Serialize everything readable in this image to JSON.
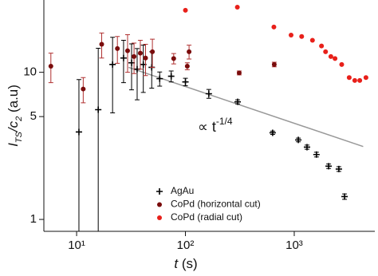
{
  "chart_data": {
    "type": "scatter",
    "y_label_parts": [
      "I",
      "TS",
      "/c",
      "2",
      " (a.u)"
    ],
    "x_label_parts": [
      "t",
      " (s)"
    ],
    "annotation_parts": [
      "∝ t",
      "-1/4"
    ],
    "log_x": true,
    "log_y": true,
    "legend": "lower center",
    "xlim": [
      5,
      5500
    ],
    "ylim": [
      0.83,
      31
    ],
    "xticks": [
      {
        "value": 10,
        "label": "10¹"
      },
      {
        "value": 100,
        "label": "10²"
      },
      {
        "value": 1000,
        "label": "10³"
      }
    ],
    "yticks": [
      1,
      5,
      10
    ],
    "fit_line": {
      "color": "#999999",
      "x": [
        30,
        4300
      ],
      "values": [
        10.8,
        3.13
      ]
    },
    "series": [
      {
        "name": "AgAu",
        "color": "#000000",
        "marker": "plus",
        "x": [
          10.5,
          15.8,
          21.4,
          27,
          32,
          36,
          41,
          49,
          58,
          74,
          100,
          164,
          302,
          633,
          1090,
          1310,
          1600,
          2070,
          2570,
          2900
        ],
        "values": [
          3.93,
          5.57,
          11.3,
          12.5,
          11.6,
          10.5,
          11.3,
          10.8,
          9.05,
          9.4,
          8.6,
          7.15,
          6.3,
          3.88,
          3.47,
          3.1,
          2.76,
          2.3,
          2.2,
          1.43
        ],
        "errors": [
          5,
          9,
          6,
          4,
          4,
          4,
          4,
          3,
          1,
          0.8,
          0.5,
          0.5,
          0.2,
          0.1,
          0.1,
          0.1,
          0.1,
          0.08,
          0.08,
          0.06
        ]
      },
      {
        "name": "CoPd (horizontal cut)",
        "color": "#7a0c0c",
        "marker": "circle",
        "error_color": "#b03030",
        "x": [
          5.8,
          11.5,
          17,
          23.7,
          29.4,
          33.7,
          38.5,
          43,
          49.7,
          78,
          108,
          104,
          312,
          655
        ],
        "values": [
          11,
          7.7,
          15.5,
          14.5,
          14,
          12.8,
          13.5,
          12.5,
          13.8,
          12.4,
          13.8,
          11,
          9.9,
          11.3
        ],
        "errors": [
          2.5,
          1.5,
          3,
          3,
          4,
          3,
          3,
          3,
          3,
          1,
          1.5,
          0.6,
          0.3,
          0.4
        ]
      },
      {
        "name": "CoPd (radial cut)",
        "color": "#e8201a",
        "marker": "circle",
        "x": [
          100,
          300,
          650,
          935,
          1170,
          1470,
          1780,
          1940,
          2170,
          2370,
          2730,
          3200,
          3600,
          4000,
          4560
        ],
        "values": [
          26.4,
          27.7,
          20.3,
          17.9,
          17.5,
          16.5,
          15.1,
          13.8,
          12.8,
          12.4,
          11.3,
          9.2,
          8.8,
          8.8,
          9.2
        ]
      }
    ]
  }
}
